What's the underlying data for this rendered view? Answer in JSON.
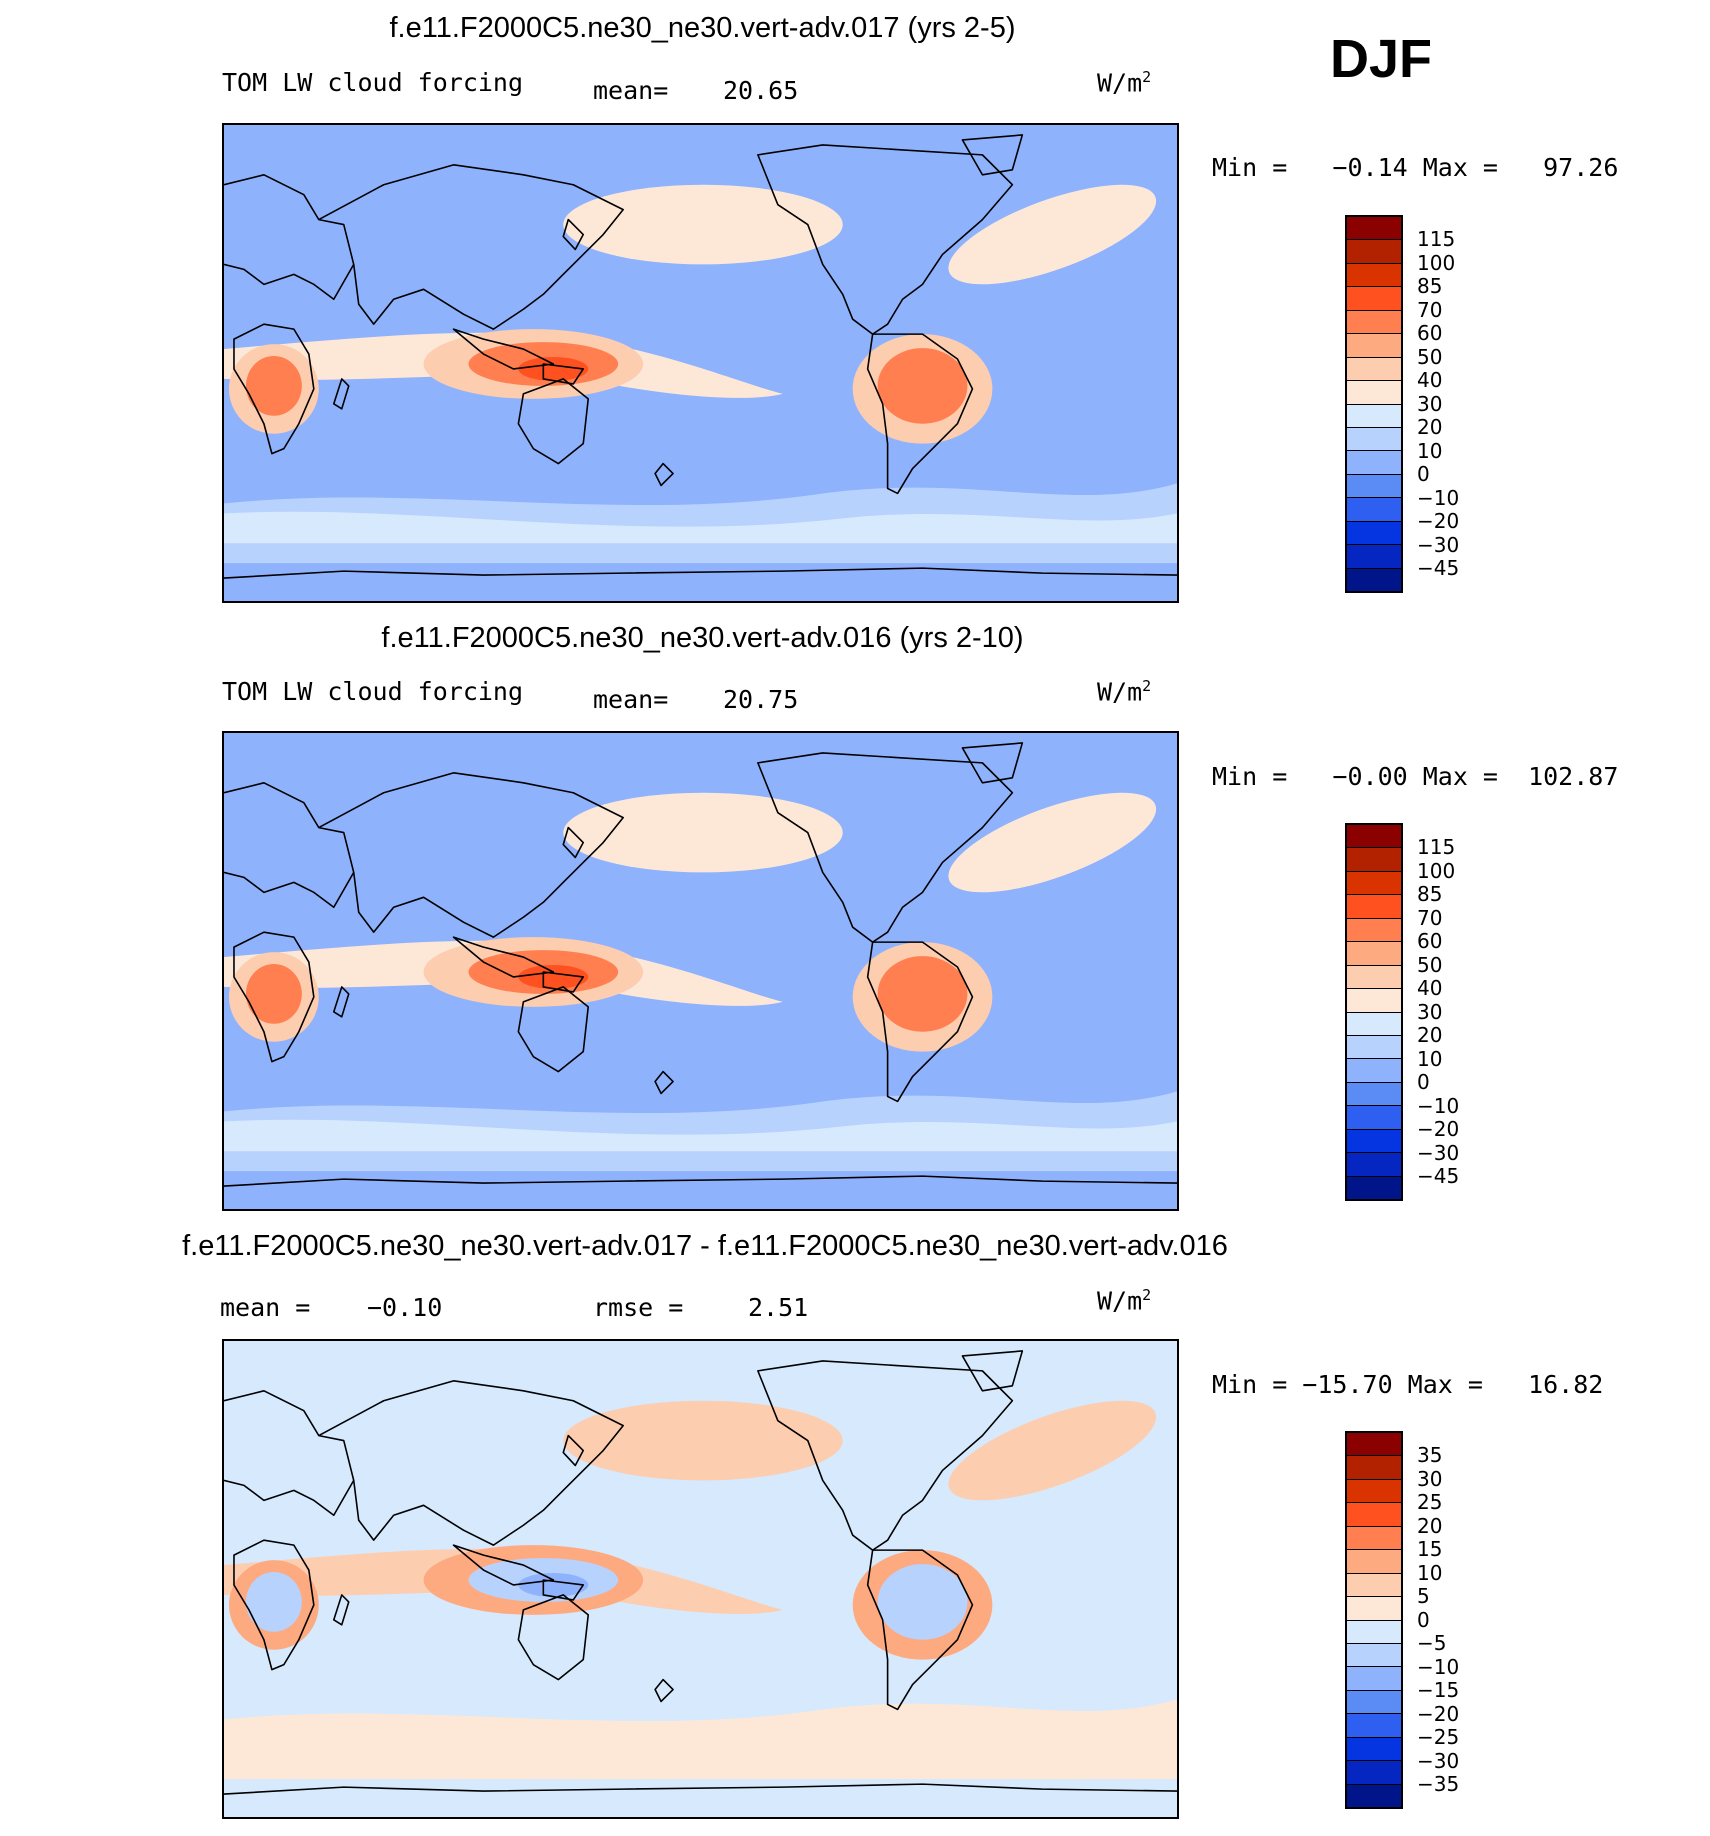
{
  "season": "DJF",
  "units": "W/m",
  "units_power": "2",
  "panels": [
    {
      "title": "f.e11.F2000C5.ne30_ne30.vert-adv.017 (yrs 2-5)",
      "variable": "TOM LW cloud forcing",
      "stat1_label": "mean=",
      "stat1_value": "20.65",
      "minmax": "Min =   −0.14 Max =   97.26",
      "levels": [
        "115",
        "100",
        "85",
        "70",
        "60",
        "50",
        "40",
        "30",
        "20",
        "10",
        "0",
        "−10",
        "−20",
        "−30",
        "−45"
      ],
      "colors": [
        "#8b0000",
        "#b22200",
        "#d93300",
        "#ff5020",
        "#ff7f50",
        "#fdaa80",
        "#fdcdb0",
        "#fde8d8",
        "#d6e9fd",
        "#b8d2fe",
        "#8fb2fd",
        "#5b8cf5",
        "#2f5ff0",
        "#0535e0",
        "#0526c0",
        "#00158a"
      ],
      "map_colors": {
        "bg": "#8fb2fd",
        "mid": "#b8d2fe",
        "light": "#d6e9fd",
        "warm": "#fde8d8",
        "warm2": "#fdcdb0",
        "hot": "#ff7f50",
        "hotter": "#ff5020"
      }
    },
    {
      "title": "f.e11.F2000C5.ne30_ne30.vert-adv.016 (yrs 2-10)",
      "variable": "TOM LW cloud forcing",
      "stat1_label": "mean=",
      "stat1_value": "20.75",
      "minmax": "Min =   −0.00 Max =  102.87",
      "levels": [
        "115",
        "100",
        "85",
        "70",
        "60",
        "50",
        "40",
        "30",
        "20",
        "10",
        "0",
        "−10",
        "−20",
        "−30",
        "−45"
      ],
      "colors": [
        "#8b0000",
        "#b22200",
        "#d93300",
        "#ff5020",
        "#ff7f50",
        "#fdaa80",
        "#fdcdb0",
        "#fde8d8",
        "#d6e9fd",
        "#b8d2fe",
        "#8fb2fd",
        "#5b8cf5",
        "#2f5ff0",
        "#0535e0",
        "#0526c0",
        "#00158a"
      ],
      "map_colors": {
        "bg": "#8fb2fd",
        "mid": "#b8d2fe",
        "light": "#d6e9fd",
        "warm": "#fde8d8",
        "warm2": "#fdcdb0",
        "hot": "#ff7f50",
        "hotter": "#ff5020"
      }
    },
    {
      "title": "f.e11.F2000C5.ne30_ne30.vert-adv.017 - f.e11.F2000C5.ne30_ne30.vert-adv.016",
      "variable": "",
      "stat1_label": "mean =",
      "stat1_value": "−0.10",
      "stat2_label": "rmse =",
      "stat2_value": "2.51",
      "minmax": "Min = −15.70 Max =   16.82",
      "levels": [
        "35",
        "30",
        "25",
        "20",
        "15",
        "10",
        "5",
        "0",
        "−5",
        "−10",
        "−15",
        "−20",
        "−25",
        "−30",
        "−35"
      ],
      "colors": [
        "#8b0000",
        "#b22200",
        "#d93300",
        "#ff5020",
        "#ff7f50",
        "#fdaa80",
        "#fdcdb0",
        "#fde8d8",
        "#d6e9fd",
        "#b8d2fe",
        "#8fb2fd",
        "#5b8cf5",
        "#2f5ff0",
        "#0535e0",
        "#0526c0",
        "#00158a"
      ],
      "map_colors": {
        "bg": "#d6e9fd",
        "mid": "#fde8d8",
        "light": "#fde8d8",
        "warm": "#fdcdb0",
        "warm2": "#fdaa80",
        "hot": "#b8d2fe",
        "hotter": "#8fb2fd"
      }
    }
  ]
}
